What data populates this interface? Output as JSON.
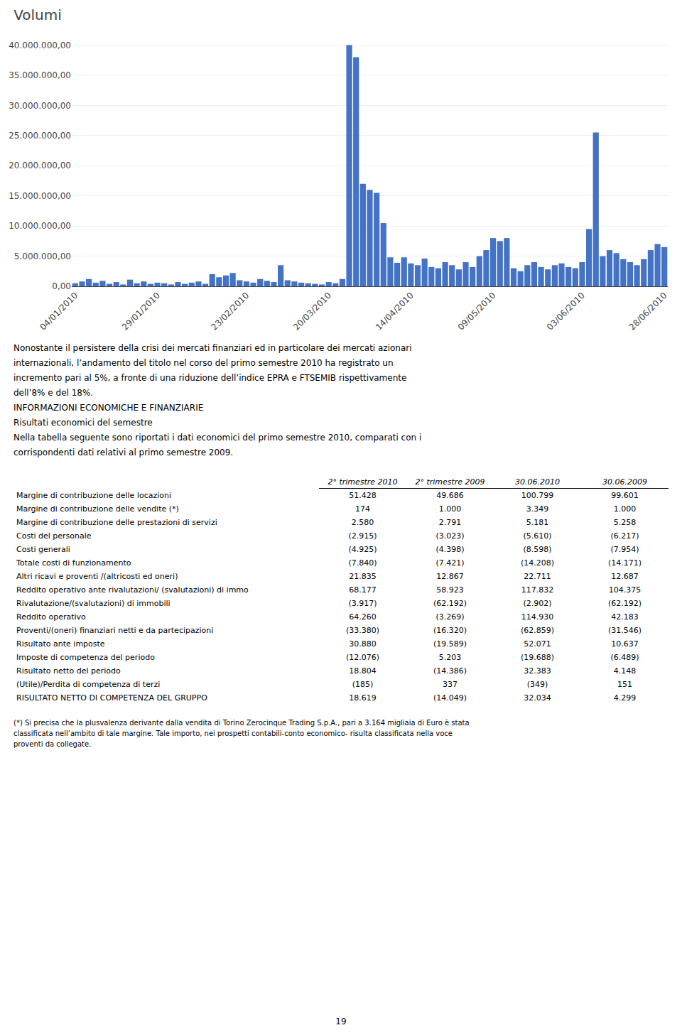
{
  "chart_data": {
    "type": "bar",
    "title": "Volumi",
    "color": "#4472C4",
    "categories": [
      "04/01/2010",
      null,
      null,
      null,
      null,
      null,
      null,
      null,
      null,
      null,
      null,
      null,
      "29/01/2010",
      null,
      null,
      null,
      null,
      null,
      null,
      null,
      null,
      null,
      null,
      null,
      null,
      "23/02/2010",
      null,
      null,
      null,
      null,
      null,
      null,
      null,
      null,
      null,
      null,
      null,
      "20/03/2010",
      null,
      null,
      null,
      null,
      null,
      null,
      null,
      null,
      null,
      null,
      null,
      "14/04/2010",
      null,
      null,
      null,
      null,
      null,
      null,
      null,
      null,
      null,
      null,
      null,
      "09/05/2010",
      null,
      null,
      null,
      null,
      null,
      null,
      null,
      null,
      null,
      null,
      null,
      null,
      "03/06/2010",
      null,
      null,
      null,
      null,
      null,
      null,
      null,
      null,
      null,
      null,
      null,
      "28/06/2010"
    ],
    "values": [
      500000,
      800000,
      1200000,
      600000,
      900000,
      400000,
      700000,
      300000,
      1100000,
      500000,
      800000,
      400000,
      600000,
      500000,
      300000,
      700000,
      400000,
      600000,
      800000,
      400000,
      2000000,
      1500000,
      1800000,
      2200000,
      1000000,
      800000,
      600000,
      1200000,
      900000,
      700000,
      3500000,
      1000000,
      800000,
      600000,
      500000,
      400000,
      300000,
      700000,
      500000,
      1200000,
      40000000,
      38000000,
      17000000,
      16000000,
      15500000,
      10500000,
      4800000,
      3900000,
      4800000,
      3800000,
      3500000,
      4600000,
      3200000,
      3000000,
      4000000,
      3500000,
      2800000,
      4000000,
      3200000,
      5000000,
      6000000,
      8000000,
      7500000,
      8000000,
      3000000,
      2500000,
      3500000,
      4000000,
      3200000,
      2800000,
      3500000,
      3800000,
      3200000,
      3000000,
      4000000,
      9500000,
      25500000,
      5000000,
      6000000,
      5500000,
      4500000,
      4000000,
      3500000,
      4500000,
      6000000,
      7000000,
      6500000
    ],
    "ylim": [
      0,
      41000000
    ],
    "yticks": [
      {
        "value": 0,
        "label": "0,00"
      },
      {
        "value": 5000000,
        "label": "5.000.000,00"
      },
      {
        "value": 10000000,
        "label": "10.000.000,00"
      },
      {
        "value": 15000000,
        "label": "15.000.000,00"
      },
      {
        "value": 20000000,
        "label": "20.000.000,00"
      },
      {
        "value": 25000000,
        "label": "25.000.000,00"
      },
      {
        "value": 30000000,
        "label": "30.000.000,00"
      },
      {
        "value": 35000000,
        "label": "35.000.000,00"
      },
      {
        "value": 40000000,
        "label": "40.000.000,00"
      }
    ],
    "grid": true,
    "annotations": [
      "Nonostante il persistere della crisi dei mercati finanziari ed in particolare dei mercati azionari",
      "internazionali, l’andamento del titolo nel corso del primo semestre 2010 ha registrato un",
      "incremento pari al 5%, a fronte di una riduzione dell’indice EPRA e FTSEMIB rispettivamente",
      "dell’8% e del 18%.",
      "INFORMAZIONI ECONOMICHE E FINANZIARIE",
      "Risultati economici del semestre",
      "Nella tabella seguente sono riportati i dati economici del primo semestre 2010, comparati con i",
      "corrispondenti dati relativi al primo semestre 2009."
    ],
    "table": {
      "columns": [
        "2° trimestre 2010",
        "2° trimestre 2009",
        "30.06.2010",
        "30.06.2009"
      ],
      "rows": [
        [
          "Margine di contribuzione delle locazioni",
          "51.428",
          "49.686",
          "100.799",
          "99.601"
        ],
        [
          "Margine di contribuzione delle vendite (*)",
          "174",
          "1.000",
          "3.349",
          "1.000"
        ],
        [
          "Margine di contribuzione delle prestazioni di servizi",
          "2.580",
          "2.791",
          "5.181",
          "5.258"
        ],
        [
          "Costi del personale",
          "(2.915)",
          "(3.023)",
          "(5.610)",
          "(6.217)"
        ],
        [
          "Costi generali",
          "(4.925)",
          "(4.398)",
          "(8.598)",
          "(7.954)"
        ],
        [
          "Totale costi di funzionamento",
          "(7.840)",
          "(7.421)",
          "(14.208)",
          "(14.171)"
        ],
        [
          "Altri ricavi e proventi /(altricosti ed oneri)",
          "21.835",
          "12.867",
          "22.711",
          "12.687"
        ],
        [
          "Reddito operativo ante rivalutazioni/ (svalutazioni) di immo",
          "68.177",
          "58.923",
          "117.832",
          "104.375"
        ],
        [
          "Rivalutazione/(svalutazioni) di immobili",
          "(3.917)",
          "(62.192)",
          "(2.902)",
          "(62.192)"
        ],
        [
          "Reddito operativo",
          "64.260",
          "(3.269)",
          "114.930",
          "42.183"
        ],
        [
          "Proventi/(oneri) finanziari netti e da partecipazioni",
          "(33.380)",
          "(16.320)",
          "(62.859)",
          "(31.546)"
        ],
        [
          "Risultato ante imposte",
          "30.880",
          "(19.589)",
          "52.071",
          "10.637"
        ],
        [
          "Imposte di competenza del periodo",
          "(12.076)",
          "5.203",
          "(19.688)",
          "(6.489)"
        ],
        [
          "Risultato netto del periodo",
          "18.804",
          "(14.386)",
          "32.383",
          "4.148"
        ],
        [
          "(Utile)/Perdita di competenza di terzi",
          "(185)",
          "337",
          "(349)",
          "151"
        ],
        [
          "RISULTATO NETTO DI COMPETENZA DEL GRUPPO",
          "18.619",
          "(14.049)",
          "32.034",
          "4.299"
        ]
      ]
    },
    "footnote": [
      "(*) Si precisa che la plusvalenza derivante dalla vendita di Torino Zerocinque Trading S.p.A., pari a 3.164 migliaia di Euro è stata",
      "classificata nell’ambito di tale margine. Tale importo, nei prospetti contabili-conto economico- risulta classificata nella voce",
      "proventi da collegate."
    ],
    "page_number": "19"
  }
}
